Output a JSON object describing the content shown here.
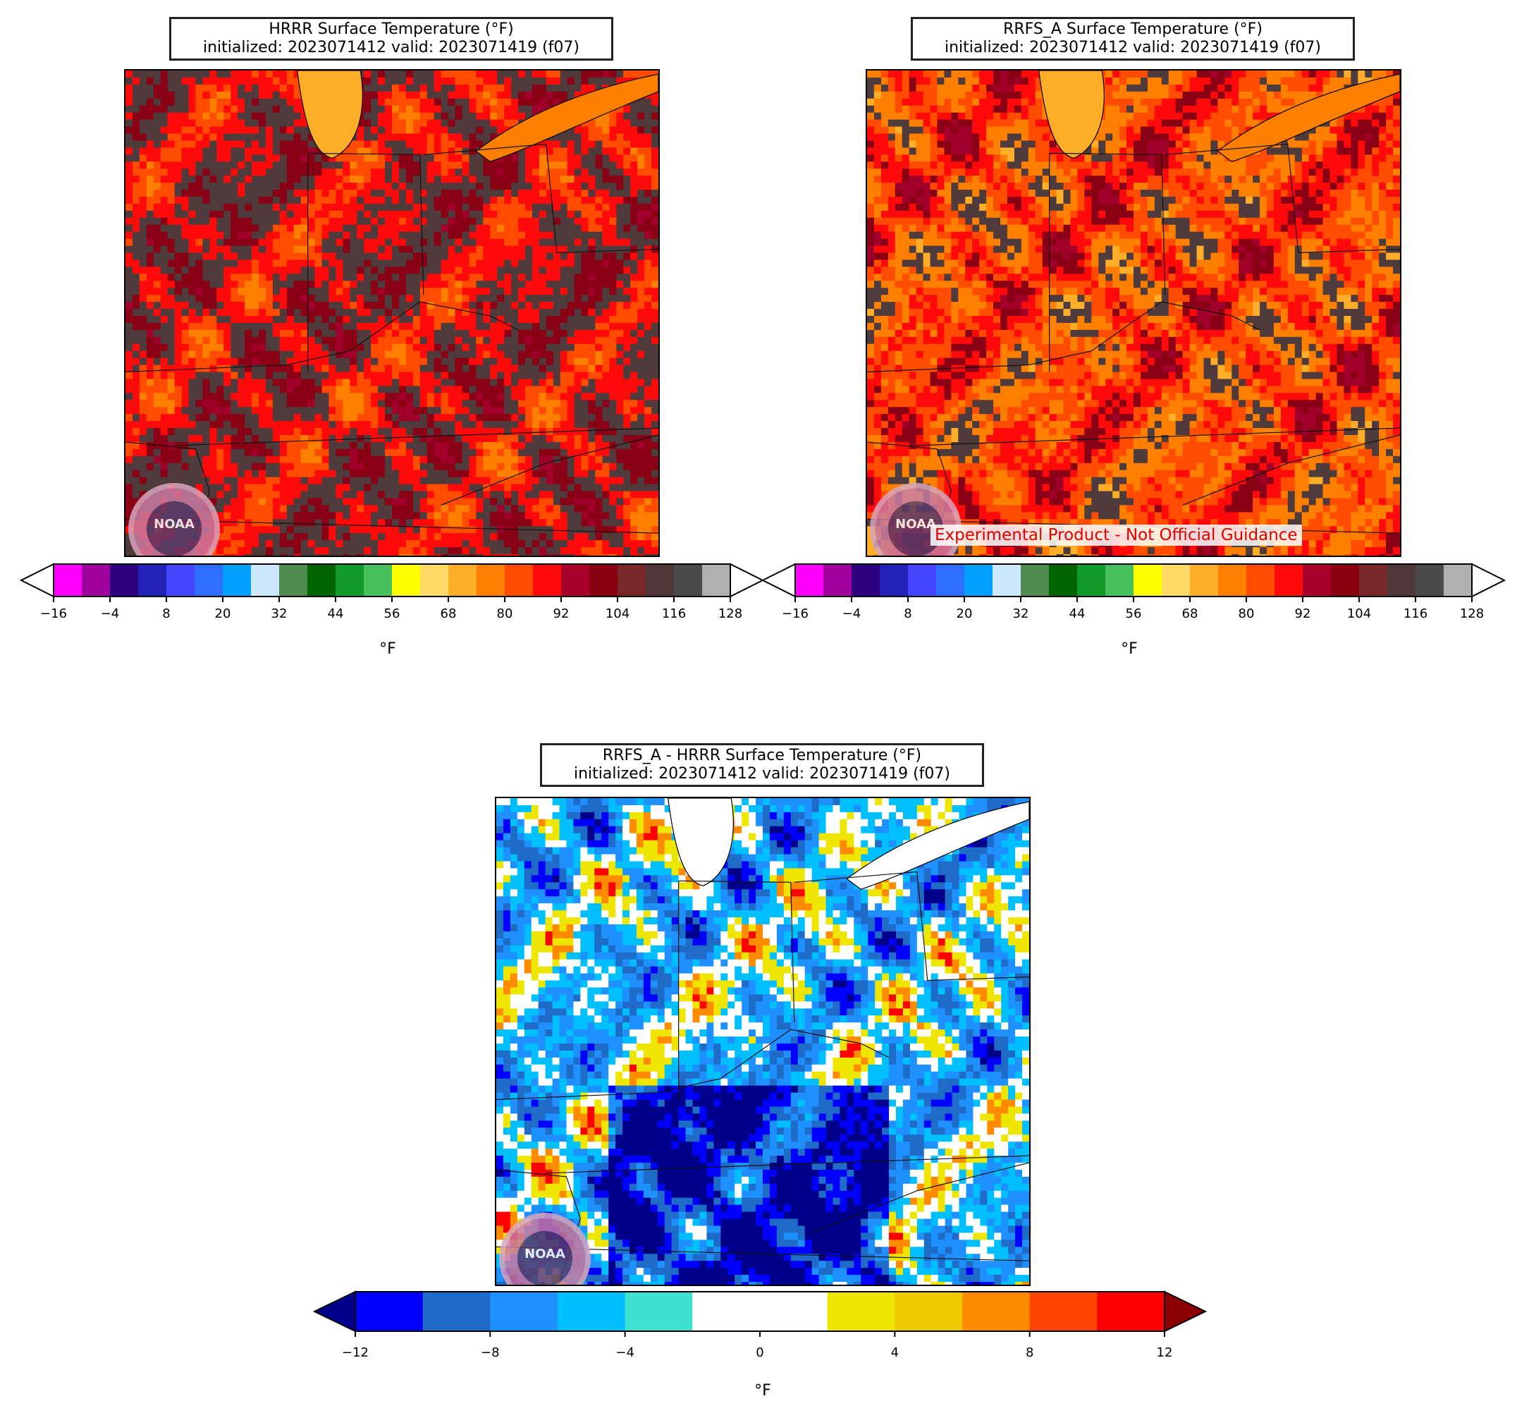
{
  "panels": {
    "hrrr": {
      "title_line1": "HRRR Surface Temperature (°F)",
      "title_line2": "initialized: 2023071412 valid: 2023071419 (f07)"
    },
    "rrfs": {
      "title_line1": "RRFS_A Surface Temperature (°F)",
      "title_line2": "initialized: 2023071412 valid: 2023071419 (f07)",
      "watermark": "Experimental Product - Not Official Guidance"
    },
    "diff": {
      "title_line1": "RRFS_A - HRRR Surface Temperature (°F)",
      "title_line2": "initialized: 2023071412 valid: 2023071419 (f07)"
    }
  },
  "logo_text": "NOAA",
  "temp_colorbar": {
    "unit": "°F",
    "ticks": [
      "−16",
      "−4",
      "8",
      "20",
      "32",
      "44",
      "56",
      "68",
      "80",
      "92",
      "104",
      "116",
      "128"
    ],
    "colors": [
      "#ff00ff",
      "#a0009c",
      "#2c007e",
      "#2222b8",
      "#4646ff",
      "#2f6fff",
      "#00a0ff",
      "#cce8ff",
      "#4f8a4f",
      "#006400",
      "#129a2a",
      "#48c05c",
      "#ffff00",
      "#ffd966",
      "#ffae2a",
      "#ff8000",
      "#ff4c00",
      "#ff0a0a",
      "#a8002a",
      "#880010",
      "#782828",
      "#503838",
      "#4a4a4a",
      "#b0b0b0"
    ],
    "over_color": "#ffffff",
    "under_color": "#ffffff"
  },
  "diff_colorbar": {
    "unit": "°F",
    "ticks": [
      "−12",
      "−8",
      "−4",
      "0",
      "4",
      "8",
      "12"
    ],
    "colors": [
      "#0000ff",
      "#1e6cc8",
      "#1e90ff",
      "#00bfff",
      "#40e0d0",
      "#ffffff",
      "#ffffff",
      "#eee600",
      "#eec900",
      "#ff8c00",
      "#ff4500",
      "#ff0000"
    ],
    "under_color": "#00008b",
    "over_color": "#8b0000"
  },
  "map_palettes": {
    "hrrr": [
      "#a0002a",
      "#8a0014",
      "#4f3b3b",
      "#ff0a0a",
      "#ff4c00",
      "#ff8000"
    ],
    "rrfs": [
      "#a0002a",
      "#8a0014",
      "#ff0a0a",
      "#ff4c00",
      "#ff8000",
      "#4f3b3b",
      "#ffae2a"
    ],
    "diff": [
      "#00008b",
      "#0000ff",
      "#1e6cc8",
      "#1e90ff",
      "#00bfff",
      "#ffffff",
      "#eee600",
      "#ff8c00",
      "#ff0000"
    ]
  }
}
